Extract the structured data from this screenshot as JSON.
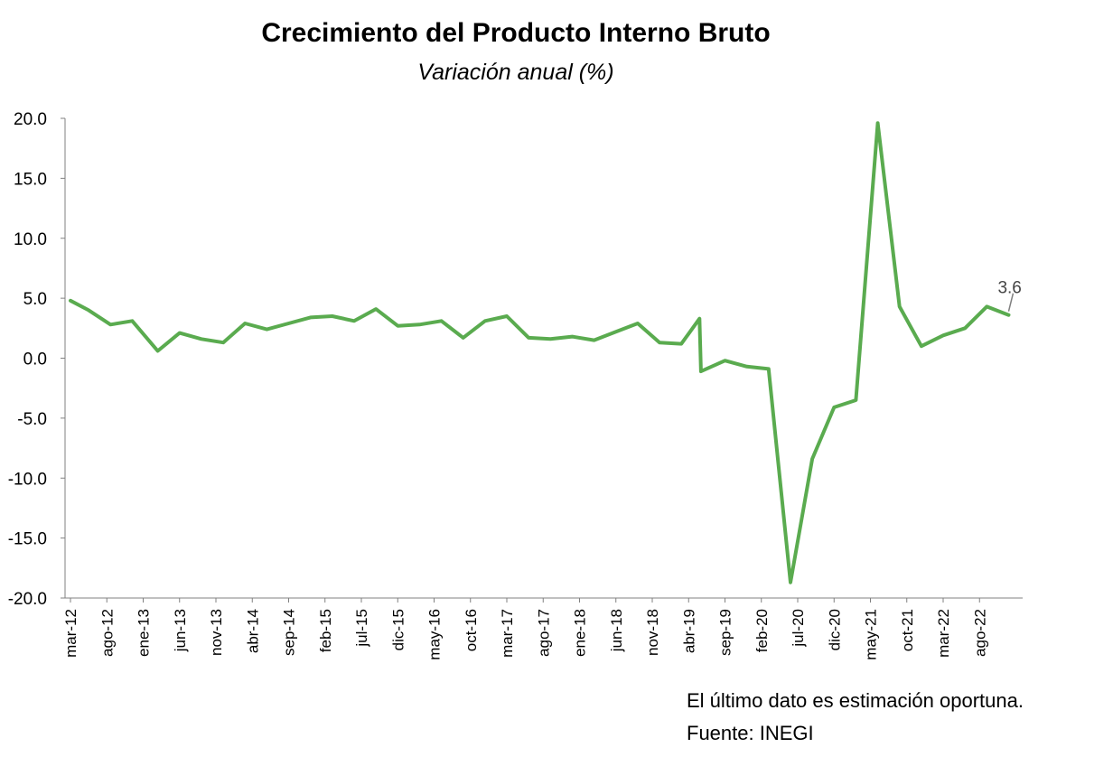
{
  "chart_data": {
    "type": "line",
    "title": "Crecimiento del Producto Interno Bruto",
    "subtitle": "Variación anual (%)",
    "xlabel": "",
    "ylabel": "",
    "ylim": [
      -20,
      20
    ],
    "yticks": [
      "20.0",
      "15.0",
      "10.0",
      "5.0",
      "0.0",
      "-5.0",
      "-10.0",
      "-15.0",
      "-20.0"
    ],
    "x_tick_labels": [
      "mar-12",
      "ago-12",
      "ene-13",
      "jun-13",
      "nov-13",
      "abr-14",
      "sep-14",
      "feb-15",
      "jul-15",
      "dic-15",
      "may-16",
      "oct-16",
      "mar-17",
      "ago-17",
      "ene-18",
      "jun-18",
      "nov-18",
      "abr-19",
      "sep-19",
      "feb-20",
      "jul-20",
      "dic-20",
      "may-21",
      "oct-21",
      "mar-22",
      "ago-22"
    ],
    "x_tick_indices": [
      0,
      5,
      10,
      15,
      20,
      25,
      30,
      35,
      40,
      45,
      50,
      55,
      60,
      65,
      70,
      75,
      80,
      85,
      90,
      95,
      100,
      105,
      110,
      115,
      120,
      125
    ],
    "series": [
      {
        "color": "#5aab4f",
        "points": [
          {
            "i": 0,
            "v": 4.8
          },
          {
            "i": 2.5,
            "v": 4.0
          },
          {
            "i": 5.5,
            "v": 2.8
          },
          {
            "i": 8.5,
            "v": 3.1
          },
          {
            "i": 12,
            "v": 0.6
          },
          {
            "i": 15,
            "v": 2.1
          },
          {
            "i": 18,
            "v": 1.6
          },
          {
            "i": 21,
            "v": 1.3
          },
          {
            "i": 24,
            "v": 2.9
          },
          {
            "i": 27,
            "v": 2.4
          },
          {
            "i": 30,
            "v": 2.9
          },
          {
            "i": 33,
            "v": 3.4
          },
          {
            "i": 36,
            "v": 3.5
          },
          {
            "i": 39,
            "v": 3.1
          },
          {
            "i": 42,
            "v": 4.1
          },
          {
            "i": 45,
            "v": 2.7
          },
          {
            "i": 48,
            "v": 2.8
          },
          {
            "i": 51,
            "v": 3.1
          },
          {
            "i": 54,
            "v": 1.7
          },
          {
            "i": 57,
            "v": 3.1
          },
          {
            "i": 60,
            "v": 3.5
          },
          {
            "i": 63,
            "v": 1.7
          },
          {
            "i": 66,
            "v": 1.6
          },
          {
            "i": 69,
            "v": 1.8
          },
          {
            "i": 72,
            "v": 1.5
          },
          {
            "i": 75,
            "v": 2.2
          },
          {
            "i": 78,
            "v": 2.9
          },
          {
            "i": 81,
            "v": 1.3
          },
          {
            "i": 84,
            "v": 1.2
          },
          {
            "i": 86.5,
            "v": 3.3
          },
          {
            "i": 86.7,
            "v": -1.1
          },
          {
            "i": 90,
            "v": -0.2
          },
          {
            "i": 93,
            "v": -0.7
          },
          {
            "i": 96,
            "v": -0.9
          },
          {
            "i": 99,
            "v": -18.7
          },
          {
            "i": 102,
            "v": -8.4
          },
          {
            "i": 105,
            "v": -4.1
          },
          {
            "i": 108,
            "v": -3.5
          },
          {
            "i": 111,
            "v": 19.6
          },
          {
            "i": 114,
            "v": 4.3
          },
          {
            "i": 117,
            "v": 1.0
          },
          {
            "i": 120,
            "v": 1.9
          },
          {
            "i": 123,
            "v": 2.5
          },
          {
            "i": 126,
            "v": 4.3
          },
          {
            "i": 129,
            "v": 3.6
          }
        ]
      }
    ],
    "last_value_label": "3.6",
    "grid": false,
    "legend": "none"
  },
  "notes": {
    "estimate": "El último dato es estimación oportuna.",
    "source": "Fuente: INEGI"
  }
}
